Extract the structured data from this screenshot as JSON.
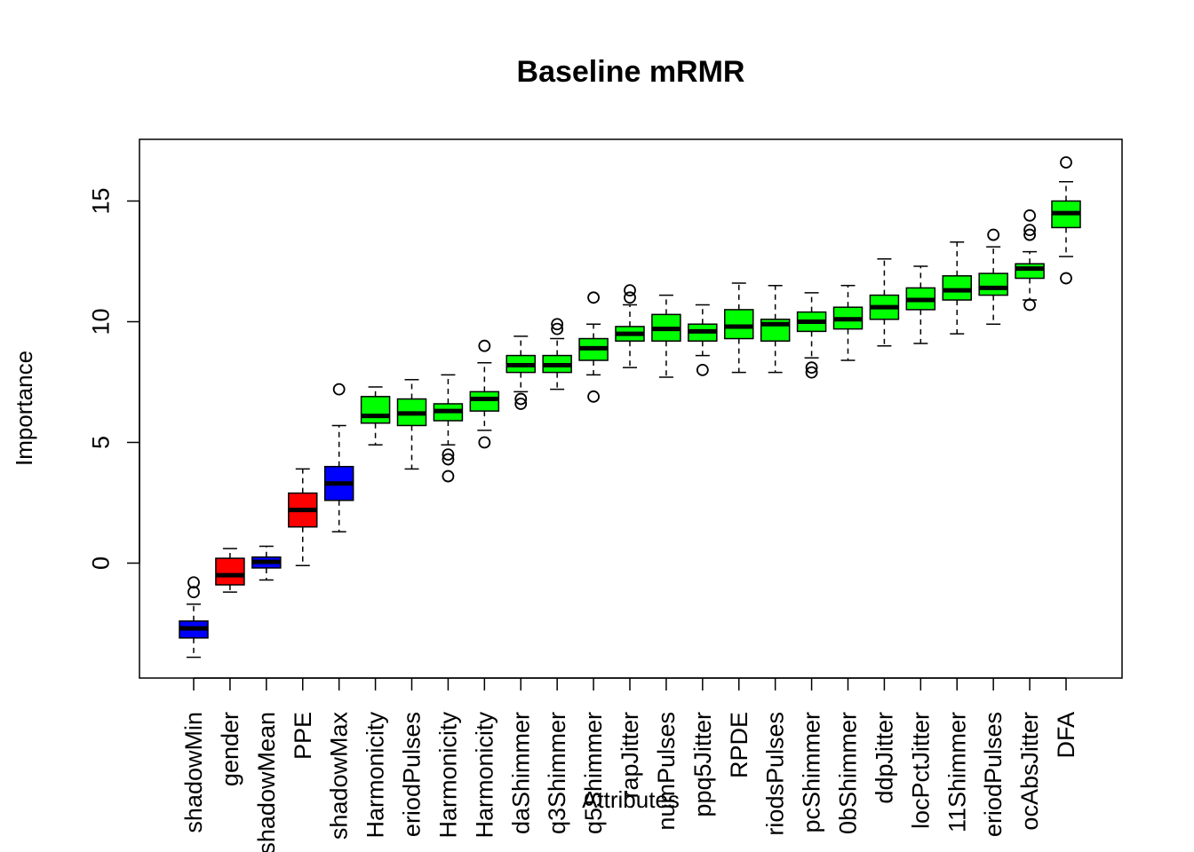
{
  "chart_data": {
    "type": "boxplot",
    "title": "Baseline mRMR",
    "xlabel": "Attributes",
    "ylabel": "Importance",
    "ylim": [
      -4.7,
      17.3
    ],
    "yticks": [
      0,
      5,
      10,
      15
    ],
    "grid": false,
    "legend": "none",
    "colors": {
      "confirmed": "#00ff00",
      "rejected": "#ff0000",
      "shadow": "#0000ff"
    },
    "categories": [
      "shadowMin",
      "gender",
      "shadowMean",
      "PPE",
      "shadowMax",
      "Harmonicity",
      "eriodPulses",
      "Harmonicity",
      "Harmonicity",
      "daShimmer",
      "q3Shimmer",
      "q5Shimmer",
      "rapJitter",
      "numPulses",
      "ppq5Jitter",
      "RPDE",
      "riodsPulses",
      "pcShimmer",
      "0bShimmer",
      "ddpJitter",
      "locPctJitter",
      "11Shimmer",
      "eriodPulses",
      "ocAbsJitter",
      "DFA"
    ],
    "series": [
      {
        "status": "shadow",
        "whisker_low": -3.9,
        "q1": -3.1,
        "median": -2.7,
        "q3": -2.4,
        "whisker_high": -1.7,
        "outliers": [
          -1.2,
          -0.8
        ]
      },
      {
        "status": "rejected",
        "whisker_low": -1.2,
        "q1": -0.9,
        "median": -0.5,
        "q3": 0.2,
        "whisker_high": 0.6,
        "outliers": []
      },
      {
        "status": "shadow",
        "whisker_low": -0.7,
        "q1": -0.2,
        "median": 0.05,
        "q3": 0.25,
        "whisker_high": 0.7,
        "outliers": []
      },
      {
        "status": "rejected",
        "whisker_low": -0.1,
        "q1": 1.5,
        "median": 2.2,
        "q3": 2.9,
        "whisker_high": 3.9,
        "outliers": []
      },
      {
        "status": "shadow",
        "whisker_low": 1.3,
        "q1": 2.6,
        "median": 3.3,
        "q3": 4.0,
        "whisker_high": 5.7,
        "outliers": [
          7.2
        ]
      },
      {
        "status": "confirmed",
        "whisker_low": 4.9,
        "q1": 5.8,
        "median": 6.1,
        "q3": 6.9,
        "whisker_high": 7.3,
        "outliers": []
      },
      {
        "status": "confirmed",
        "whisker_low": 3.9,
        "q1": 5.7,
        "median": 6.2,
        "q3": 6.8,
        "whisker_high": 7.6,
        "outliers": []
      },
      {
        "status": "confirmed",
        "whisker_low": 4.9,
        "q1": 5.9,
        "median": 6.3,
        "q3": 6.6,
        "whisker_high": 7.8,
        "outliers": [
          4.3,
          4.5,
          3.6
        ]
      },
      {
        "status": "confirmed",
        "whisker_low": 5.5,
        "q1": 6.3,
        "median": 6.8,
        "q3": 7.1,
        "whisker_high": 8.3,
        "outliers": [
          9.0,
          5.0
        ]
      },
      {
        "status": "confirmed",
        "whisker_low": 7.1,
        "q1": 7.9,
        "median": 8.2,
        "q3": 8.6,
        "whisker_high": 9.4,
        "outliers": [
          6.6,
          6.8
        ]
      },
      {
        "status": "confirmed",
        "whisker_low": 7.2,
        "q1": 7.9,
        "median": 8.2,
        "q3": 8.6,
        "whisker_high": 9.3,
        "outliers": [
          9.7,
          9.9
        ]
      },
      {
        "status": "confirmed",
        "whisker_low": 7.8,
        "q1": 8.4,
        "median": 8.9,
        "q3": 9.3,
        "whisker_high": 9.9,
        "outliers": [
          11.0,
          6.9
        ]
      },
      {
        "status": "confirmed",
        "whisker_low": 8.1,
        "q1": 9.2,
        "median": 9.5,
        "q3": 9.8,
        "whisker_high": 10.7,
        "outliers": [
          11.0,
          11.3
        ]
      },
      {
        "status": "confirmed",
        "whisker_low": 7.7,
        "q1": 9.2,
        "median": 9.7,
        "q3": 10.3,
        "whisker_high": 11.1,
        "outliers": []
      },
      {
        "status": "confirmed",
        "whisker_low": 8.6,
        "q1": 9.2,
        "median": 9.6,
        "q3": 9.9,
        "whisker_high": 10.7,
        "outliers": [
          8.0
        ]
      },
      {
        "status": "confirmed",
        "whisker_low": 7.9,
        "q1": 9.3,
        "median": 9.8,
        "q3": 10.5,
        "whisker_high": 11.6,
        "outliers": []
      },
      {
        "status": "confirmed",
        "whisker_low": 7.9,
        "q1": 9.2,
        "median": 9.9,
        "q3": 10.1,
        "whisker_high": 11.5,
        "outliers": []
      },
      {
        "status": "confirmed",
        "whisker_low": 8.5,
        "q1": 9.6,
        "median": 10.0,
        "q3": 10.4,
        "whisker_high": 11.2,
        "outliers": [
          7.9,
          8.1
        ]
      },
      {
        "status": "confirmed",
        "whisker_low": 8.4,
        "q1": 9.7,
        "median": 10.1,
        "q3": 10.6,
        "whisker_high": 11.5,
        "outliers": []
      },
      {
        "status": "confirmed",
        "whisker_low": 9.0,
        "q1": 10.1,
        "median": 10.6,
        "q3": 11.1,
        "whisker_high": 12.6,
        "outliers": []
      },
      {
        "status": "confirmed",
        "whisker_low": 9.1,
        "q1": 10.5,
        "median": 10.9,
        "q3": 11.4,
        "whisker_high": 12.3,
        "outliers": []
      },
      {
        "status": "confirmed",
        "whisker_low": 9.5,
        "q1": 10.9,
        "median": 11.3,
        "q3": 11.9,
        "whisker_high": 13.3,
        "outliers": []
      },
      {
        "status": "confirmed",
        "whisker_low": 9.9,
        "q1": 11.1,
        "median": 11.4,
        "q3": 12.0,
        "whisker_high": 13.1,
        "outliers": [
          13.6
        ]
      },
      {
        "status": "confirmed",
        "whisker_low": 10.9,
        "q1": 11.8,
        "median": 12.2,
        "q3": 12.4,
        "whisker_high": 12.9,
        "outliers": [
          10.7,
          13.6,
          13.8,
          14.4
        ]
      },
      {
        "status": "confirmed",
        "whisker_low": 12.7,
        "q1": 13.9,
        "median": 14.5,
        "q3": 15.0,
        "whisker_high": 15.8,
        "outliers": [
          16.6,
          11.8
        ]
      }
    ]
  }
}
